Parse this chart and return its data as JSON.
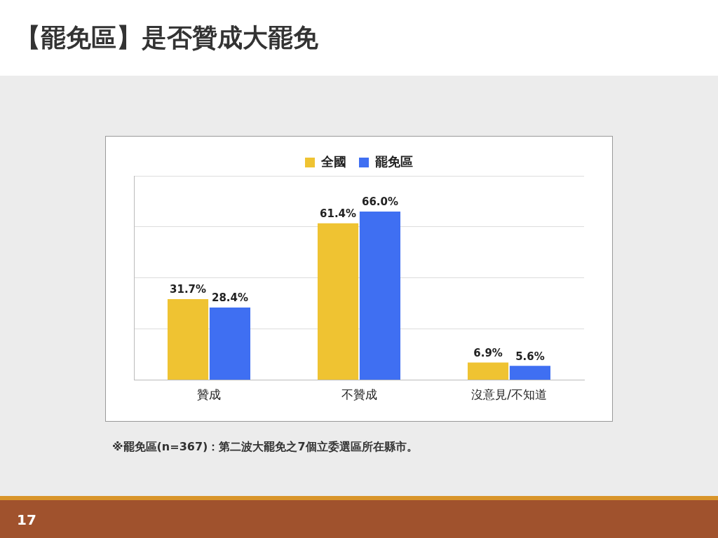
{
  "chart_data": {
    "type": "bar",
    "title": "【罷免區】是否贊成大罷免",
    "categories": [
      "贊成",
      "不贊成",
      "沒意見/不知道"
    ],
    "series": [
      {
        "name": "全國",
        "color": "#efc332",
        "values": [
          31.7,
          61.4,
          6.9
        ],
        "value_labels": [
          "31.7%",
          "61.4%",
          "6.9%"
        ]
      },
      {
        "name": "罷免區",
        "color": "#3f6ff2",
        "values": [
          28.4,
          66.0,
          5.6
        ],
        "value_labels": [
          "28.4%",
          "66.0%",
          "5.6%"
        ]
      }
    ],
    "ylim": [
      0,
      80
    ],
    "yticks": [
      {
        "value": 0,
        "label": null
      },
      {
        "value": 20,
        "label": null
      },
      {
        "value": 40,
        "label": null
      },
      {
        "value": 60,
        "label": null
      },
      {
        "value": 80,
        "label": null
      }
    ],
    "grid": "y",
    "legend": "top",
    "tick_labels": "x",
    "annotations": [
      "※罷免區(n=367)：第二波大罷免之7個立委選區所在縣市。",
      "17"
    ]
  }
}
